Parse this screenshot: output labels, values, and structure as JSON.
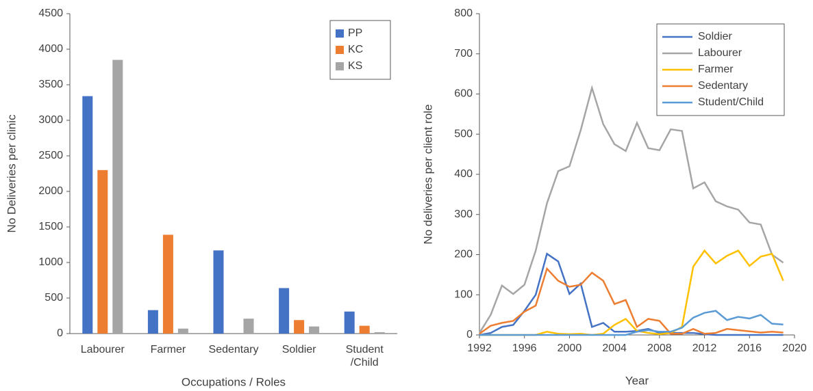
{
  "chart_data": [
    {
      "type": "bar",
      "xlabel": "Occupations / Roles",
      "ylabel": "No Deliveries per clinic",
      "categories": [
        "Labourer",
        "Farmer",
        "Sedentary",
        "Soldier",
        "Student\n/Child"
      ],
      "series": [
        {
          "name": "PP",
          "color": "#4472c4",
          "values": [
            3340,
            330,
            1170,
            640,
            310
          ]
        },
        {
          "name": "KC",
          "color": "#ed7d31",
          "values": [
            2300,
            1390,
            0,
            190,
            110
          ]
        },
        {
          "name": "KS",
          "color": "#a5a5a5",
          "values": [
            3850,
            70,
            210,
            100,
            20
          ]
        }
      ],
      "ylim": [
        0,
        4500
      ],
      "yticks": [
        0,
        500,
        1000,
        1500,
        2000,
        2500,
        3000,
        3500,
        4000,
        4500
      ],
      "legend": "upper-right"
    },
    {
      "type": "line",
      "xlabel": "Year",
      "ylabel": "No deliveries per client role",
      "x": [
        1992,
        1993,
        1994,
        1995,
        1996,
        1997,
        1998,
        1999,
        2000,
        2001,
        2002,
        2003,
        2004,
        2005,
        2006,
        2007,
        2008,
        2009,
        2010,
        2011,
        2012,
        2013,
        2014,
        2015,
        2016,
        2017,
        2018,
        2019
      ],
      "series": [
        {
          "name": "Soldier",
          "color": "#4472c4",
          "values": [
            0,
            5,
            20,
            25,
            60,
            100,
            202,
            183,
            102,
            128,
            20,
            30,
            8,
            8,
            10,
            15,
            5,
            5,
            5,
            5,
            2,
            0,
            0,
            0,
            0,
            0,
            0,
            0
          ]
        },
        {
          "name": "Labourer",
          "color": "#a5a5a5",
          "values": [
            5,
            50,
            123,
            102,
            125,
            210,
            328,
            408,
            420,
            510,
            615,
            525,
            475,
            458,
            528,
            465,
            460,
            512,
            508,
            365,
            380,
            333,
            320,
            312,
            280,
            275,
            200,
            180
          ]
        },
        {
          "name": "Farmer",
          "color": "#ffc000",
          "values": [
            0,
            0,
            0,
            0,
            0,
            0,
            8,
            3,
            2,
            3,
            0,
            3,
            25,
            40,
            10,
            5,
            2,
            5,
            20,
            170,
            210,
            178,
            197,
            210,
            172,
            195,
            202,
            135
          ]
        },
        {
          "name": "Sedentary",
          "color": "#ed7d31",
          "values": [
            3,
            23,
            30,
            35,
            58,
            73,
            165,
            135,
            120,
            125,
            155,
            135,
            77,
            87,
            20,
            40,
            35,
            3,
            3,
            15,
            3,
            5,
            15,
            12,
            9,
            6,
            8,
            6
          ]
        },
        {
          "name": "Student/Child",
          "color": "#5b9bd5",
          "values": [
            0,
            0,
            0,
            0,
            0,
            0,
            0,
            0,
            0,
            0,
            0,
            0,
            0,
            0,
            8,
            12,
            8,
            8,
            18,
            43,
            55,
            60,
            37,
            45,
            41,
            50,
            28,
            26
          ]
        }
      ],
      "xlim": [
        1992,
        2020
      ],
      "xticks": [
        1992,
        1996,
        2000,
        2004,
        2008,
        2012,
        2016,
        2020
      ],
      "ylim": [
        0,
        800
      ],
      "yticks": [
        0,
        100,
        200,
        300,
        400,
        500,
        600,
        700,
        800
      ],
      "legend": "upper-right"
    }
  ]
}
